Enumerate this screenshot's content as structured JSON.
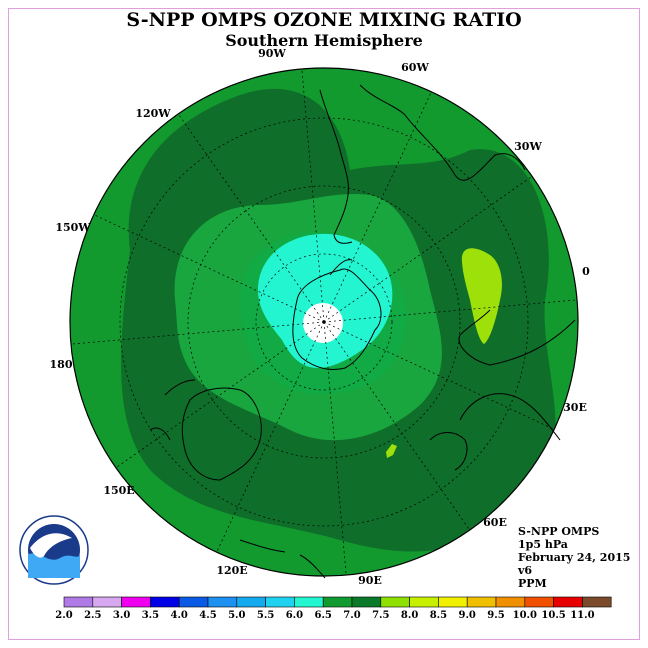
{
  "header": {
    "title": "S-NPP OMPS OZONE MIXING RATIO",
    "subtitle": "Southern Hemisphere"
  },
  "map": {
    "longitude_labels": [
      "90W",
      "60W",
      "30W",
      "0",
      "30E",
      "60E",
      "90E",
      "120E",
      "150E",
      "180",
      "150W",
      "120W"
    ],
    "colors": {
      "outer": "#139a2e",
      "dark_band": "#0e6e2a",
      "mid": "#19a63e",
      "inner_ring": "#11aa44",
      "vortex": "#22f5d0",
      "pole": "#ffffff",
      "anomaly": "#9ee10a",
      "coast": "#000000"
    }
  },
  "info": {
    "instrument": "S-NPP OMPS",
    "level": "1p5 hPa",
    "date": "February 24, 2015",
    "version": "v6",
    "units": "PPM"
  },
  "colorbar": {
    "labels": [
      "2.0",
      "2.5",
      "3.0",
      "3.5",
      "4.0",
      "4.5",
      "5.0",
      "5.5",
      "6.0",
      "6.5",
      "7.0",
      "7.5",
      "8.0",
      "8.5",
      "9.0",
      "9.5",
      "10.0",
      "10.5",
      "11.0"
    ],
    "colors": [
      "#b07ae6",
      "#d7a8f0",
      "#ee00ee",
      "#0000e6",
      "#0a5ae6",
      "#1e90f0",
      "#14aaf0",
      "#1ed2f0",
      "#22f5d0",
      "#109a30",
      "#0a7a2a",
      "#8fe000",
      "#c6f000",
      "#f0f000",
      "#f0c000",
      "#f09000",
      "#f05000",
      "#e60000",
      "#7a4a2a"
    ]
  }
}
